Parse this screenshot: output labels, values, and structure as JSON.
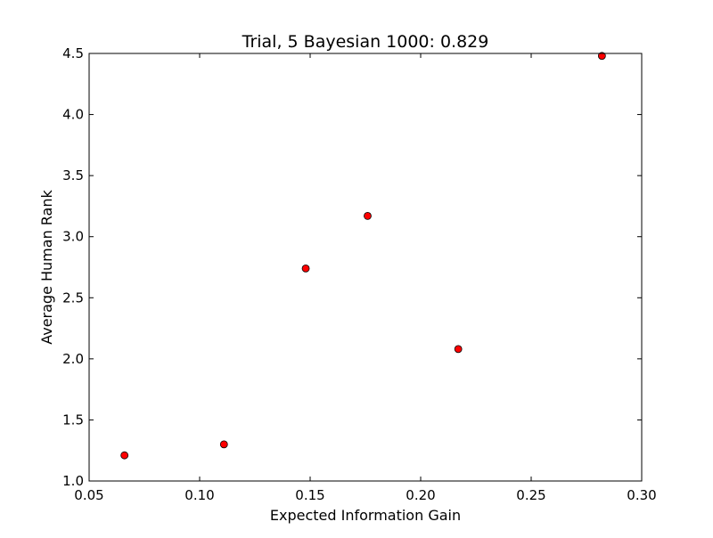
{
  "chart_data": {
    "type": "scatter",
    "title": "Trial, 5 Bayesian 1000: 0.829",
    "xlabel": "Expected Information Gain",
    "ylabel": "Average Human Rank",
    "xlim": [
      0.05,
      0.3
    ],
    "ylim": [
      1.0,
      4.5
    ],
    "xticks": [
      0.05,
      0.1,
      0.15,
      0.2,
      0.25,
      0.3
    ],
    "xtick_labels": [
      "0.05",
      "0.10",
      "0.15",
      "0.20",
      "0.25",
      "0.30"
    ],
    "yticks": [
      1.0,
      1.5,
      2.0,
      2.5,
      3.0,
      3.5,
      4.0,
      4.5
    ],
    "ytick_labels": [
      "1.0",
      "1.5",
      "2.0",
      "2.5",
      "3.0",
      "3.5",
      "4.0",
      "4.5"
    ],
    "grid": false,
    "marker_color": "#ff0000",
    "marker_edge_color": "#000000",
    "series": [
      {
        "points": [
          {
            "x": 0.066,
            "y": 1.21
          },
          {
            "x": 0.111,
            "y": 1.3
          },
          {
            "x": 0.148,
            "y": 2.74
          },
          {
            "x": 0.176,
            "y": 3.17
          },
          {
            "x": 0.217,
            "y": 2.08
          },
          {
            "x": 0.282,
            "y": 4.48
          }
        ]
      }
    ]
  }
}
